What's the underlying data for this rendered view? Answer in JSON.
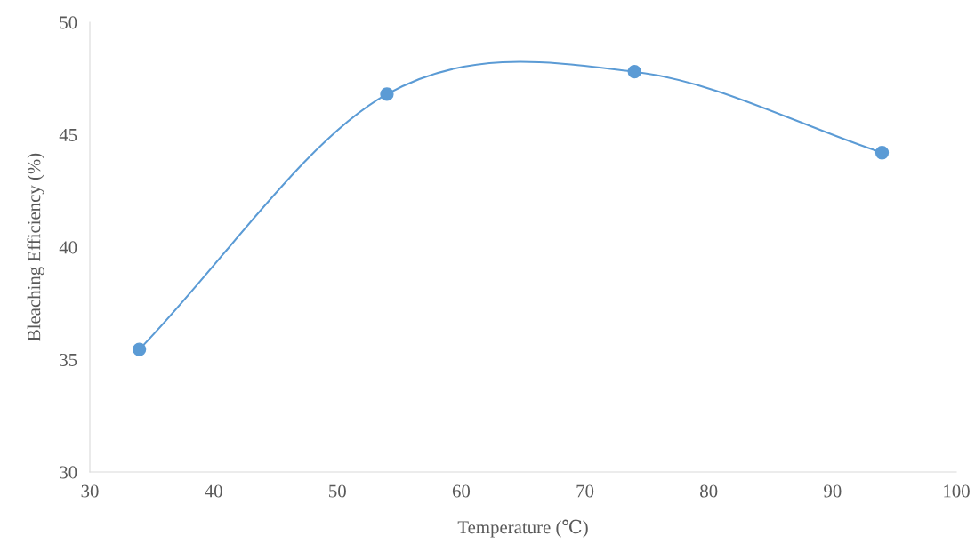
{
  "chart_data": {
    "type": "line",
    "xlabel": "Temperature (℃)",
    "ylabel": "Bleaching Efficiency (%)",
    "x": [
      34,
      54,
      74,
      94
    ],
    "series": [
      {
        "color": "#5b9bd5",
        "values": [
          35.45,
          46.8,
          47.8,
          44.2
        ]
      }
    ],
    "xlim": [
      30,
      100
    ],
    "xticks": [
      30,
      40,
      50,
      60,
      70,
      80,
      90,
      100
    ],
    "ylim": [
      30,
      50
    ],
    "yticks": [
      30,
      35,
      40,
      45,
      50
    ],
    "marker": "circle",
    "line_style": "solid",
    "grid": false
  }
}
